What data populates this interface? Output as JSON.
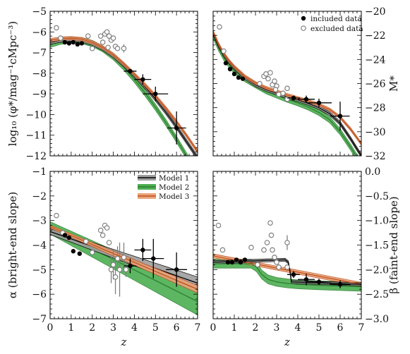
{
  "chart_data": [
    {
      "type": "line",
      "panel": "top-left",
      "ylabel": "log₁₀ (φ*/mag⁻¹cMpc⁻³)",
      "ylabel_side": "left",
      "xlim": [
        0,
        7
      ],
      "ylim": [
        -12,
        -5
      ],
      "yticks": [
        -12,
        -11,
        -10,
        -9,
        -8,
        -7,
        -6,
        -5
      ],
      "xticks": [],
      "x": [
        0.0,
        0.5,
        1.0,
        1.5,
        2.0,
        2.5,
        3.0,
        3.5,
        4.0,
        4.5,
        5.0,
        5.5,
        6.0,
        6.5,
        7.0
      ],
      "series": [
        {
          "name": "Model 1",
          "values": [
            -6.5,
            -6.4,
            -6.35,
            -6.4,
            -6.55,
            -6.8,
            -7.15,
            -7.6,
            -8.1,
            -8.65,
            -9.25,
            -9.9,
            -10.6,
            -11.35,
            -12.1
          ],
          "band": 0.1
        },
        {
          "name": "Model 2",
          "values": [
            -6.6,
            -6.45,
            -6.38,
            -6.42,
            -6.56,
            -6.82,
            -7.2,
            -7.7,
            -8.3,
            -8.95,
            -9.65,
            -10.4,
            -11.2,
            -12.05,
            -12.9
          ],
          "band": 0.15
        },
        {
          "name": "Model 3",
          "values": [
            -6.4,
            -6.32,
            -6.3,
            -6.35,
            -6.5,
            -6.75,
            -7.1,
            -7.55,
            -8.05,
            -8.55,
            -9.1,
            -9.7,
            -10.35,
            -11.05,
            -11.8
          ],
          "band": 0.08
        }
      ],
      "included": [
        {
          "x": 0.7,
          "y": -6.5
        },
        {
          "x": 0.9,
          "y": -6.55
        },
        {
          "x": 1.1,
          "y": -6.5
        },
        {
          "x": 1.3,
          "y": -6.6
        },
        {
          "x": 1.5,
          "y": -6.55
        },
        {
          "x": 3.8,
          "y": -7.9,
          "xerr": 0.3,
          "yerr": 0.1
        },
        {
          "x": 4.4,
          "y": -8.3,
          "xerr": 0.4,
          "yerr": 0.25
        },
        {
          "x": 5.0,
          "y": -9.0,
          "xerr": 0.6,
          "yerr": 0.35
        },
        {
          "x": 6.0,
          "y": -10.65,
          "xerr": 0.45,
          "yerr": 0.8
        }
      ],
      "excluded": [
        {
          "x": 0.3,
          "y": -5.8
        },
        {
          "x": 0.5,
          "y": -6.3
        },
        {
          "x": 1.8,
          "y": -6.2
        },
        {
          "x": 2.0,
          "y": -6.8
        },
        {
          "x": 2.4,
          "y": -6.2
        },
        {
          "x": 2.5,
          "y": -6.5
        },
        {
          "x": 2.6,
          "y": -6.1
        },
        {
          "x": 2.7,
          "y": -6.0
        },
        {
          "x": 2.8,
          "y": -6.2
        },
        {
          "x": 2.9,
          "y": -6.4
        },
        {
          "x": 3.0,
          "y": -6.3
        },
        {
          "x": 3.1,
          "y": -6.7
        },
        {
          "x": 3.2,
          "y": -6.8
        },
        {
          "x": 3.5,
          "y": -6.8,
          "yerr": 0.2
        },
        {
          "x": 2.75,
          "y": -6.75
        }
      ]
    },
    {
      "type": "line",
      "panel": "top-right",
      "ylabel": "M*",
      "ylabel_side": "right",
      "xlim": [
        0,
        7
      ],
      "ylim": [
        -32,
        -20
      ],
      "yticks": [
        -32,
        -30,
        -28,
        -26,
        -24,
        -22,
        -20
      ],
      "xticks": [],
      "legend": {
        "placement": "top-right",
        "entries": [
          "included data",
          "excluded data"
        ]
      },
      "x": [
        0.0,
        0.25,
        0.5,
        0.75,
        1.0,
        1.5,
        2.0,
        2.5,
        3.0,
        3.5,
        4.0,
        4.5,
        5.0,
        5.5,
        6.0,
        6.5,
        7.0
      ],
      "series": [
        {
          "name": "Model 1",
          "values": [
            -21.8,
            -22.8,
            -23.6,
            -24.2,
            -24.7,
            -25.5,
            -26.1,
            -26.5,
            -26.8,
            -27.1,
            -27.35,
            -27.65,
            -28.0,
            -28.5,
            -29.3,
            -30.6,
            -32.0
          ],
          "band": 0.15
        },
        {
          "name": "Model 2",
          "values": [
            -22.0,
            -23.0,
            -23.8,
            -24.4,
            -24.9,
            -25.6,
            -26.1,
            -26.6,
            -26.95,
            -27.3,
            -27.6,
            -27.95,
            -28.4,
            -29.0,
            -30.0,
            -31.3,
            -32.7
          ],
          "band": 0.25
        },
        {
          "name": "Model 3",
          "values": [
            -21.7,
            -22.7,
            -23.5,
            -24.1,
            -24.6,
            -25.4,
            -25.95,
            -26.35,
            -26.65,
            -26.95,
            -27.2,
            -27.45,
            -27.75,
            -28.15,
            -28.8,
            -29.8,
            -31.0
          ],
          "band": 0.12
        }
      ],
      "included": [
        {
          "x": 0.6,
          "y": -24.3
        },
        {
          "x": 0.8,
          "y": -24.8
        },
        {
          "x": 1.0,
          "y": -25.2
        },
        {
          "x": 1.2,
          "y": -25.5
        },
        {
          "x": 1.4,
          "y": -25.6
        },
        {
          "x": 3.8,
          "y": -27.2,
          "xerr": 0.3,
          "yerr": 0.15
        },
        {
          "x": 4.4,
          "y": -27.3,
          "xerr": 0.4,
          "yerr": 0.3
        },
        {
          "x": 5.0,
          "y": -27.6,
          "xerr": 0.6,
          "yerr": 0.35
        },
        {
          "x": 6.0,
          "y": -28.7,
          "xerr": 0.45,
          "yerr": 1.2
        }
      ],
      "excluded": [
        {
          "x": 0.3,
          "y": -21.3
        },
        {
          "x": 0.5,
          "y": -23.3
        },
        {
          "x": 2.2,
          "y": -26.0
        },
        {
          "x": 2.4,
          "y": -25.4
        },
        {
          "x": 2.5,
          "y": -25.2
        },
        {
          "x": 2.6,
          "y": -25.6
        },
        {
          "x": 2.7,
          "y": -25.1
        },
        {
          "x": 2.8,
          "y": -26.1
        },
        {
          "x": 2.9,
          "y": -25.8
        },
        {
          "x": 3.0,
          "y": -26.2
        },
        {
          "x": 3.1,
          "y": -26.9
        },
        {
          "x": 3.3,
          "y": -26.8
        },
        {
          "x": 3.5,
          "y": -26.4
        },
        {
          "x": 3.5,
          "y": -27.3
        },
        {
          "x": 2.95,
          "y": -26.5
        }
      ]
    },
    {
      "type": "line",
      "panel": "bottom-left",
      "xlabel": "z",
      "ylabel": "α (bright-end slope)",
      "ylabel_side": "left",
      "xlim": [
        0,
        7
      ],
      "ylim": [
        -7,
        -1
      ],
      "yticks": [
        -7,
        -6,
        -5,
        -4,
        -3,
        -2,
        -1
      ],
      "xticks": [
        0,
        1,
        2,
        3,
        4,
        5,
        6,
        7
      ],
      "legend": {
        "placement": "top-right",
        "entries": [
          "Model 1",
          "Model 2",
          "Model 3"
        ]
      },
      "x": [
        0,
        7
      ],
      "series": [
        {
          "name": "Model 1",
          "values": [
            -3.45,
            -5.55
          ],
          "band": 0.12
        },
        {
          "name": "Model 2",
          "values": [
            -3.3,
            -6.3
          ],
          "band": 0.25
        },
        {
          "name": "Model 3",
          "values": [
            -3.25,
            -5.8
          ],
          "band": 0.06
        }
      ],
      "band_width_at_end": {
        "Model 1": 0.25,
        "Model 2": 0.55,
        "Model 3": 0.15
      },
      "included": [
        {
          "x": 0.7,
          "y": -3.6
        },
        {
          "x": 0.9,
          "y": -3.7
        },
        {
          "x": 1.1,
          "y": -4.25
        },
        {
          "x": 1.4,
          "y": -4.35
        },
        {
          "x": 3.8,
          "y": -4.85,
          "xerr": 0.3,
          "yerr": 0.3
        },
        {
          "x": 4.4,
          "y": -4.2,
          "xerr": 0.4,
          "yerr": 0.45
        },
        {
          "x": 4.9,
          "y": -4.55,
          "xerr": 0.5,
          "yerr": 0.8
        },
        {
          "x": 6.0,
          "y": -5.0,
          "xerr": 0.5,
          "yerr": 0.7
        }
      ],
      "excluded": [
        {
          "x": 0.3,
          "y": -2.8
        },
        {
          "x": 0.6,
          "y": -3.5
        },
        {
          "x": 1.7,
          "y": -3.85
        },
        {
          "x": 2.0,
          "y": -4.3
        },
        {
          "x": 2.4,
          "y": -3.4
        },
        {
          "x": 2.5,
          "y": -3.6
        },
        {
          "x": 2.6,
          "y": -3.2
        },
        {
          "x": 2.7,
          "y": -3.3
        },
        {
          "x": 2.8,
          "y": -3.9
        },
        {
          "x": 2.9,
          "y": -5.0,
          "yerr": 0.55
        },
        {
          "x": 3.0,
          "y": -4.8,
          "yerr": 0.6
        },
        {
          "x": 3.1,
          "y": -5.3,
          "yerr": 0.7
        },
        {
          "x": 3.2,
          "y": -4.55,
          "yerr": 0.5
        },
        {
          "x": 3.3,
          "y": -5.0,
          "yerr": 1.1
        },
        {
          "x": 3.5,
          "y": -4.5,
          "yerr": 0.6
        },
        {
          "x": 3.6,
          "y": -5.0,
          "yerr": 0.3
        }
      ]
    },
    {
      "type": "line",
      "panel": "bottom-right",
      "xlabel": "z",
      "ylabel": "β (faint-end slope)",
      "ylabel_side": "right",
      "xlim": [
        0,
        7
      ],
      "ylim": [
        -3.0,
        0.0
      ],
      "yticks": [
        -3.0,
        -2.5,
        -2.0,
        -1.5,
        -1.0,
        -0.5,
        0.0
      ],
      "xticks": [
        0,
        1,
        2,
        3,
        4,
        5,
        6,
        7
      ],
      "model1": {
        "x": [
          0,
          3.4,
          3.55,
          3.62,
          3.7,
          7
        ],
        "values": [
          -1.85,
          -1.8,
          -1.85,
          -2.0,
          -2.25,
          -2.3
        ],
        "band": 0.03
      },
      "model2": {
        "x": [
          0,
          1.8,
          2.05,
          2.3,
          2.6,
          3.0,
          3.5,
          4.0,
          5.0,
          7.0
        ],
        "values": [
          -1.88,
          -1.88,
          -1.95,
          -2.1,
          -2.2,
          -2.25,
          -2.28,
          -2.3,
          -2.32,
          -2.35
        ],
        "band": 0.09
      },
      "model3": {
        "x": [
          0,
          7
        ],
        "values": [
          -1.72,
          -2.3
        ],
        "band": 0.04
      },
      "included": [
        {
          "x": 0.7,
          "y": -1.85
        },
        {
          "x": 0.9,
          "y": -1.85
        },
        {
          "x": 1.1,
          "y": -1.8
        },
        {
          "x": 1.3,
          "y": -1.85
        },
        {
          "x": 1.5,
          "y": -1.8
        },
        {
          "x": 3.8,
          "y": -2.1,
          "xerr": 0.3,
          "yerr": 0.07
        },
        {
          "x": 4.4,
          "y": -2.2,
          "xerr": 0.4,
          "yerr": 0.12
        },
        {
          "x": 5.0,
          "y": -2.25,
          "xerr": 0.6,
          "yerr": 0.06
        },
        {
          "x": 6.0,
          "y": -2.3,
          "xerr": 0.5,
          "yerr": 0.08
        }
      ],
      "excluded": [
        {
          "x": 0.25,
          "y": -1.1
        },
        {
          "x": 0.45,
          "y": -1.6
        },
        {
          "x": 1.8,
          "y": -1.55
        },
        {
          "x": 2.1,
          "y": -1.9
        },
        {
          "x": 2.4,
          "y": -1.6
        },
        {
          "x": 2.55,
          "y": -1.45
        },
        {
          "x": 2.7,
          "y": -1.05
        },
        {
          "x": 2.75,
          "y": -1.3
        },
        {
          "x": 2.8,
          "y": -1.6
        },
        {
          "x": 2.9,
          "y": -1.75
        },
        {
          "x": 3.0,
          "y": -1.85
        },
        {
          "x": 3.1,
          "y": -1.95
        },
        {
          "x": 3.5,
          "y": -1.45,
          "yerr": 0.15
        },
        {
          "x": 3.5,
          "y": -1.95
        }
      ]
    }
  ],
  "legend_data": {
    "included": "included data",
    "excluded": "excluded data"
  },
  "colors": {
    "model1_line": "#000000",
    "model1_band": "#9e9e9e",
    "model2_line": "#2e7d32",
    "model2_band": "#4caf50",
    "model3_line": "#c0501f",
    "model3_band": "#e8a57a",
    "included": "#000000",
    "excluded_edge": "#808080"
  }
}
